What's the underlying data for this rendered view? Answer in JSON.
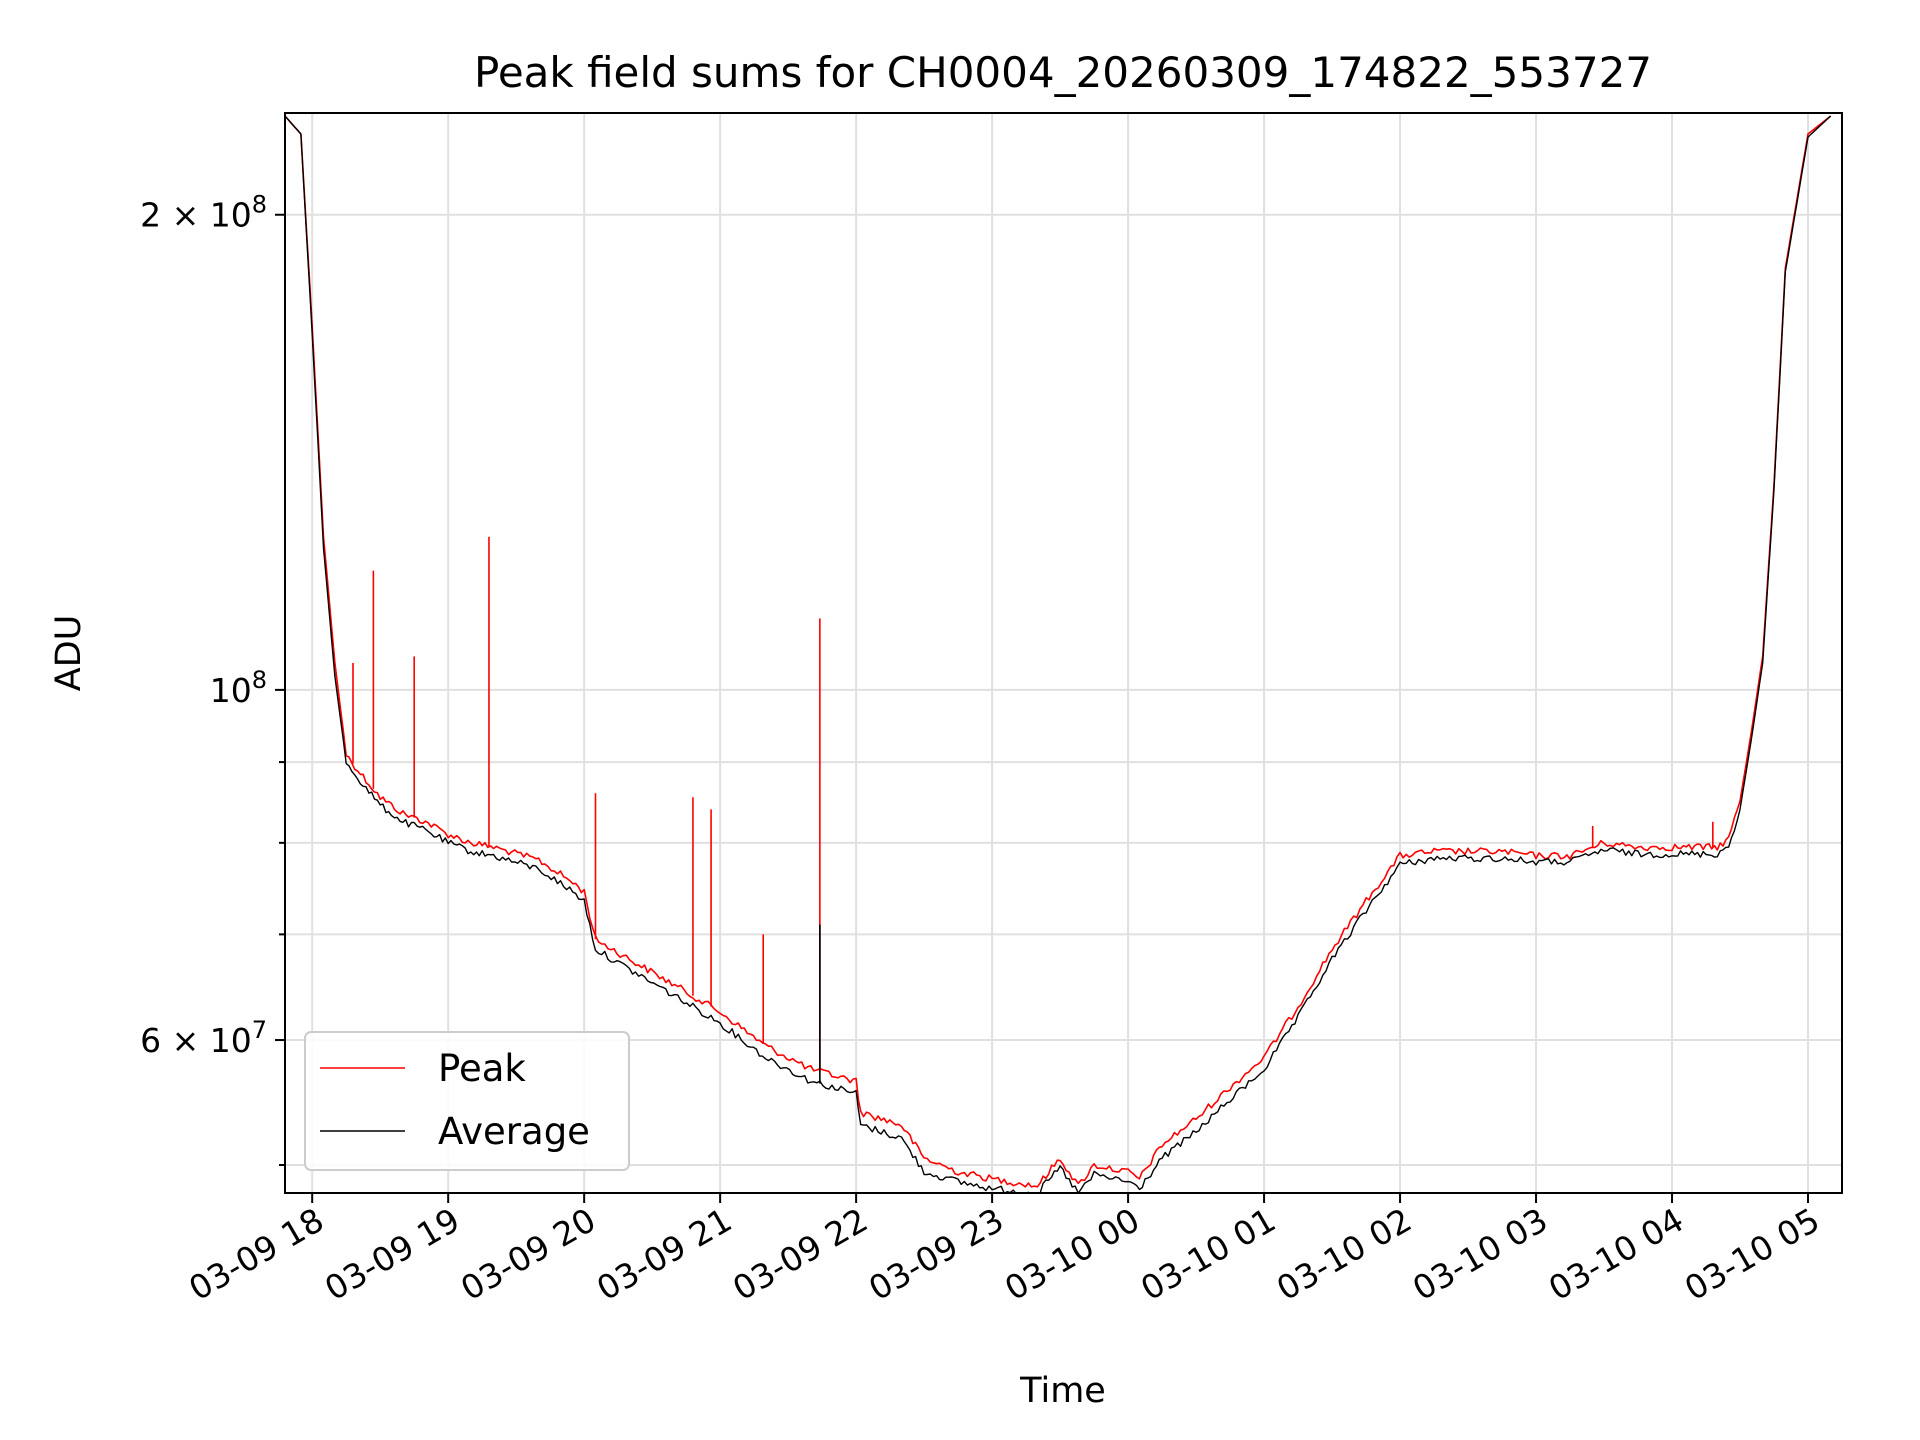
{
  "chart_data": {
    "type": "line",
    "title": "Peak field sums for CH0004_20260309_174822_553727",
    "xlabel": "Time",
    "ylabel": "ADU",
    "y_scale": "log",
    "ylim": [
      48000000,
      232000000
    ],
    "xlim": [
      "2026-03-09 17:48",
      "2026-03-10 05:15"
    ],
    "grid": true,
    "legend_position": "lower-left",
    "x_ticks": [
      "03-09 18",
      "03-09 19",
      "03-09 20",
      "03-09 21",
      "03-09 22",
      "03-09 23",
      "03-10 00",
      "03-10 01",
      "03-10 02",
      "03-10 03",
      "03-10 04",
      "03-10 05"
    ],
    "x_tick_times": [
      "2026-03-09 18:00",
      "2026-03-09 19:00",
      "2026-03-09 20:00",
      "2026-03-09 21:00",
      "2026-03-09 22:00",
      "2026-03-09 23:00",
      "2026-03-10 00:00",
      "2026-03-10 01:00",
      "2026-03-10 02:00",
      "2026-03-10 03:00",
      "2026-03-10 04:00",
      "2026-03-10 05:00"
    ],
    "y_ticks": [
      {
        "label_base": "2 × 10",
        "label_exp": "8",
        "value": 200000000
      },
      {
        "label_base": "10",
        "label_exp": "8",
        "value": 100000000
      },
      {
        "label_base": "6 × 10",
        "label_exp": "7",
        "value": 60000000
      }
    ],
    "y_minor_ticks": [
      50000000,
      70000000,
      80000000,
      90000000
    ],
    "series": [
      {
        "name": "Peak",
        "color": "#ff0000",
        "x": [
          "2026-03-09 17:48",
          "2026-03-09 17:55",
          "2026-03-09 18:00",
          "2026-03-09 18:05",
          "2026-03-09 18:10",
          "2026-03-09 18:15",
          "2026-03-09 18:20",
          "2026-03-09 18:30",
          "2026-03-09 18:40",
          "2026-03-09 18:50",
          "2026-03-09 19:00",
          "2026-03-09 19:10",
          "2026-03-09 19:20",
          "2026-03-09 19:40",
          "2026-03-09 19:55",
          "2026-03-09 20:00",
          "2026-03-09 20:05",
          "2026-03-09 20:20",
          "2026-03-09 20:40",
          "2026-03-09 21:00",
          "2026-03-09 21:20",
          "2026-03-09 21:40",
          "2026-03-09 22:00",
          "2026-03-09 22:02",
          "2026-03-09 22:20",
          "2026-03-09 22:30",
          "2026-03-09 22:45",
          "2026-03-09 23:00",
          "2026-03-09 23:20",
          "2026-03-09 23:30",
          "2026-03-09 23:38",
          "2026-03-09 23:45",
          "2026-03-10 00:00",
          "2026-03-10 00:05",
          "2026-03-10 00:15",
          "2026-03-10 00:30",
          "2026-03-10 00:45",
          "2026-03-10 01:00",
          "2026-03-10 01:15",
          "2026-03-10 01:30",
          "2026-03-10 01:45",
          "2026-03-10 02:00",
          "2026-03-10 02:15",
          "2026-03-10 02:30",
          "2026-03-10 02:45",
          "2026-03-10 03:00",
          "2026-03-10 03:15",
          "2026-03-10 03:30",
          "2026-03-10 03:45",
          "2026-03-10 04:00",
          "2026-03-10 04:10",
          "2026-03-10 04:20",
          "2026-03-10 04:25",
          "2026-03-10 04:30",
          "2026-03-10 04:35",
          "2026-03-10 04:40",
          "2026-03-10 04:45",
          "2026-03-10 04:50",
          "2026-03-10 05:00",
          "2026-03-10 05:10"
        ],
        "y": [
          231000000,
          225000000,
          170000000,
          125000000,
          104000000,
          91000000,
          89000000,
          85500000,
          83500000,
          82500000,
          81000000,
          80000000,
          79500000,
          78000000,
          75500000,
          74500000,
          69500000,
          67500000,
          65000000,
          62500000,
          59500000,
          57500000,
          56500000,
          54000000,
          53000000,
          50500000,
          49500000,
          49000000,
          48500000,
          50500000,
          48500000,
          50000000,
          49500000,
          49000000,
          51500000,
          53500000,
          56000000,
          58500000,
          63000000,
          68500000,
          73500000,
          78500000,
          79000000,
          79000000,
          79000000,
          78500000,
          78500000,
          80000000,
          79500000,
          79500000,
          79500000,
          79500000,
          80500000,
          85000000,
          94000000,
          105000000,
          135000000,
          185000000,
          225000000,
          231000000
        ]
      },
      {
        "name": "Average",
        "color": "#000000",
        "x": [
          "2026-03-09 17:48",
          "2026-03-09 17:55",
          "2026-03-09 18:00",
          "2026-03-09 18:05",
          "2026-03-09 18:10",
          "2026-03-09 18:15",
          "2026-03-09 18:20",
          "2026-03-09 18:30",
          "2026-03-09 18:40",
          "2026-03-09 18:50",
          "2026-03-09 19:00",
          "2026-03-09 19:10",
          "2026-03-09 19:20",
          "2026-03-09 19:40",
          "2026-03-09 19:55",
          "2026-03-09 20:00",
          "2026-03-09 20:05",
          "2026-03-09 20:20",
          "2026-03-09 20:40",
          "2026-03-09 21:00",
          "2026-03-09 21:20",
          "2026-03-09 21:40",
          "2026-03-09 22:00",
          "2026-03-09 22:02",
          "2026-03-09 22:20",
          "2026-03-09 22:30",
          "2026-03-09 22:45",
          "2026-03-09 23:00",
          "2026-03-09 23:20",
          "2026-03-09 23:30",
          "2026-03-09 23:38",
          "2026-03-09 23:45",
          "2026-03-10 00:00",
          "2026-03-10 00:05",
          "2026-03-10 00:15",
          "2026-03-10 00:30",
          "2026-03-10 00:45",
          "2026-03-10 01:00",
          "2026-03-10 01:15",
          "2026-03-10 01:30",
          "2026-03-10 01:45",
          "2026-03-10 02:00",
          "2026-03-10 02:15",
          "2026-03-10 02:30",
          "2026-03-10 02:45",
          "2026-03-10 03:00",
          "2026-03-10 03:15",
          "2026-03-10 03:30",
          "2026-03-10 03:45",
          "2026-03-10 04:00",
          "2026-03-10 04:10",
          "2026-03-10 04:20",
          "2026-03-10 04:25",
          "2026-03-10 04:30",
          "2026-03-10 04:35",
          "2026-03-10 04:40",
          "2026-03-10 04:45",
          "2026-03-10 04:50",
          "2026-03-10 05:00",
          "2026-03-10 05:10"
        ],
        "y": [
          231000000,
          225000000,
          168000000,
          123000000,
          102000000,
          90000000,
          88000000,
          84500000,
          82500000,
          81500000,
          80000000,
          79000000,
          78500000,
          77000000,
          74500000,
          73500000,
          68500000,
          66500000,
          64000000,
          61500000,
          58500000,
          56500000,
          55500000,
          53000000,
          52000000,
          49500000,
          48800000,
          48300000,
          48000000,
          49800000,
          48000000,
          49300000,
          48800000,
          48300000,
          50500000,
          52500000,
          55000000,
          57500000,
          62000000,
          67500000,
          72500000,
          77500000,
          78200000,
          78200000,
          78200000,
          77800000,
          77800000,
          79200000,
          78700000,
          78700000,
          78700000,
          78700000,
          79600000,
          84000000,
          93000000,
          104000000,
          134000000,
          184000000,
          224000000,
          231000000
        ]
      }
    ],
    "spikes": [
      {
        "series": "Peak",
        "x": "2026-03-09 18:18",
        "y": 104000000
      },
      {
        "series": "Peak",
        "x": "2026-03-09 18:27",
        "y": 119000000
      },
      {
        "series": "Peak",
        "x": "2026-03-09 18:45",
        "y": 105000000
      },
      {
        "series": "Peak",
        "x": "2026-03-09 19:18",
        "y": 125000000
      },
      {
        "series": "Peak",
        "x": "2026-03-09 20:05",
        "y": 86000000
      },
      {
        "series": "Peak",
        "x": "2026-03-09 20:48",
        "y": 85500000
      },
      {
        "series": "Peak",
        "x": "2026-03-09 20:56",
        "y": 84000000
      },
      {
        "series": "Peak",
        "x": "2026-03-09 21:19",
        "y": 70000000
      },
      {
        "series": "Peak",
        "x": "2026-03-09 21:44",
        "y": 111000000
      },
      {
        "series": "Average",
        "x": "2026-03-09 21:44",
        "y": 71000000
      },
      {
        "series": "Peak",
        "x": "2026-03-10 03:25",
        "y": 82000000
      },
      {
        "series": "Peak",
        "x": "2026-03-10 04:18",
        "y": 82500000
      }
    ]
  }
}
